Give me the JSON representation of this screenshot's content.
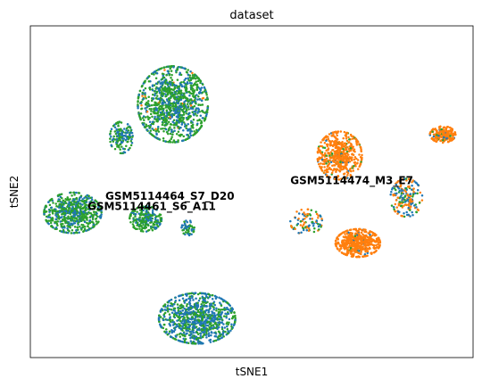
{
  "chart_data": {
    "type": "scatter",
    "title": "dataset",
    "xlabel": "tSNE1",
    "ylabel": "tSNE2",
    "grid": false,
    "legend": "on data",
    "ticks": "none",
    "colors": {
      "GSM5114461_S6_A11": "#1f77b4",
      "GSM5114464_S7_D20": "#ff7f0e",
      "GSM5114474_M3_E7": "#2ca02c"
    },
    "series": [
      {
        "name": "GSM5114461_S6_A11",
        "centroid": [
          -1.25,
          -0.15
        ]
      },
      {
        "name": "GSM5114464_S7_D20",
        "centroid": [
          -0.95,
          0.02
        ]
      },
      {
        "name": "GSM5114474_M3_E7",
        "centroid": [
          2.05,
          0.28
        ]
      }
    ],
    "clusters": [
      {
        "cx": -0.9,
        "cy": 1.55,
        "rx": 0.55,
        "ry": 0.6,
        "n": 1100,
        "w": [
          0.35,
          0.02,
          0.63
        ]
      },
      {
        "cx": -1.75,
        "cy": 1.0,
        "rx": 0.18,
        "ry": 0.25,
        "n": 160,
        "w": [
          0.35,
          0.0,
          0.65
        ]
      },
      {
        "cx": -2.55,
        "cy": -0.25,
        "rx": 0.45,
        "ry": 0.32,
        "n": 620,
        "w": [
          0.3,
          0.0,
          0.7
        ]
      },
      {
        "cx": -1.35,
        "cy": -0.35,
        "rx": 0.25,
        "ry": 0.2,
        "n": 240,
        "w": [
          0.3,
          0.0,
          0.7
        ]
      },
      {
        "cx": -0.5,
        "cy": -2.0,
        "rx": 0.6,
        "ry": 0.4,
        "n": 900,
        "w": [
          0.55,
          0.0,
          0.45
        ]
      },
      {
        "cx": -0.65,
        "cy": -0.5,
        "rx": 0.1,
        "ry": 0.12,
        "n": 50,
        "w": [
          0.5,
          0.0,
          0.5
        ]
      },
      {
        "cx": 1.85,
        "cy": 0.7,
        "rx": 0.35,
        "ry": 0.38,
        "n": 520,
        "w": [
          0.05,
          0.85,
          0.1
        ]
      },
      {
        "cx": 2.15,
        "cy": -0.75,
        "rx": 0.35,
        "ry": 0.22,
        "n": 520,
        "w": [
          0.03,
          0.95,
          0.02
        ]
      },
      {
        "cx": 3.55,
        "cy": 1.05,
        "rx": 0.2,
        "ry": 0.13,
        "n": 220,
        "w": [
          0.05,
          0.9,
          0.05
        ]
      },
      {
        "cx": 2.95,
        "cy": 0.0,
        "rx": 0.25,
        "ry": 0.3,
        "n": 180,
        "w": [
          0.45,
          0.35,
          0.2
        ]
      },
      {
        "cx": 1.3,
        "cy": -0.4,
        "rx": 0.25,
        "ry": 0.2,
        "n": 90,
        "w": [
          0.3,
          0.4,
          0.3
        ]
      }
    ],
    "xlim": [
      -3.25,
      4.05
    ],
    "ylim": [
      -2.65,
      2.85
    ]
  }
}
